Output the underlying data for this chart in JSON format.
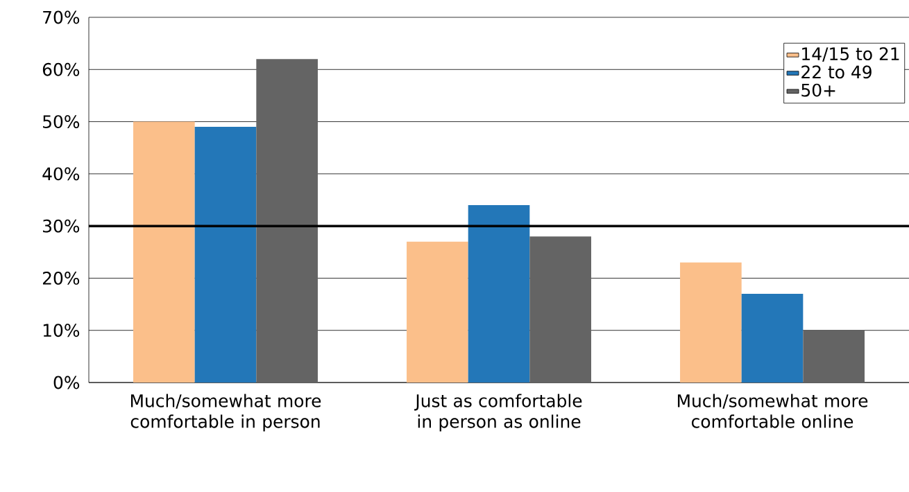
{
  "chart_data": {
    "type": "bar",
    "categories": [
      "Much/somewhat more comfortable in person",
      "Just as comfortable in person as online",
      "Much/somewhat more comfortable online"
    ],
    "series": [
      {
        "name": "14/15 to 21",
        "color": "#fbbf8a",
        "values": [
          50,
          27,
          23
        ]
      },
      {
        "name": "22 to 49",
        "color": "#2377b8",
        "values": [
          49,
          34,
          17
        ]
      },
      {
        "name": "50+",
        "color": "#646464",
        "values": [
          62,
          28,
          10
        ]
      }
    ],
    "ylim": [
      0,
      70
    ],
    "yticks": [
      {
        "value": 0,
        "label": "0%"
      },
      {
        "value": 10,
        "label": "10%"
      },
      {
        "value": 20,
        "label": "20%"
      },
      {
        "value": 30,
        "label": "30%"
      },
      {
        "value": 40,
        "label": "40%"
      },
      {
        "value": 50,
        "label": "50%"
      },
      {
        "value": 60,
        "label": "60%"
      },
      {
        "value": 70,
        "label": "70%"
      }
    ],
    "grid": "y",
    "legend": "top right",
    "ref_lines": [
      {
        "axis": "y",
        "value": 30,
        "color": "#000000"
      }
    ]
  }
}
